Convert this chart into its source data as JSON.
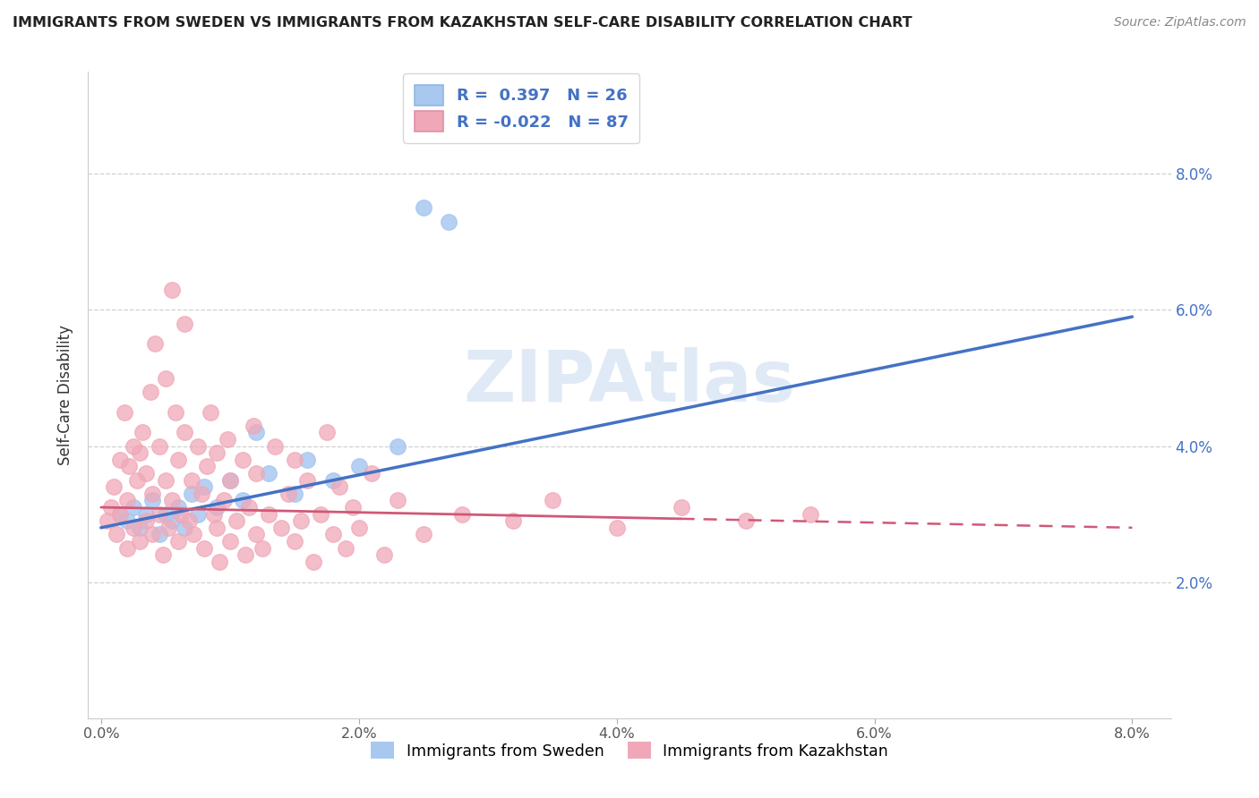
{
  "title": "IMMIGRANTS FROM SWEDEN VS IMMIGRANTS FROM KAZAKHSTAN SELF-CARE DISABILITY CORRELATION CHART",
  "source": "Source: ZipAtlas.com",
  "ylabel": "Self-Care Disability",
  "sweden_color": "#a8c8f0",
  "kazakhstan_color": "#f0a8b8",
  "sweden_line_color": "#4472c4",
  "kazakhstan_line_color": "#d05878",
  "watermark": "ZIPAtlas",
  "legend_r_sweden": "R =  0.397",
  "legend_n_sweden": "N = 26",
  "legend_r_kazakhstan": "R = -0.022",
  "legend_n_kazakhstan": "N = 87",
  "xlim": [
    0.0,
    8.0
  ],
  "ylim": [
    0.0,
    9.5
  ],
  "yticks": [
    2.0,
    4.0,
    6.0,
    8.0
  ],
  "xticks": [
    0.0,
    2.0,
    4.0,
    6.0,
    8.0
  ],
  "sweden_points": [
    [
      0.15,
      3.0
    ],
    [
      0.2,
      2.9
    ],
    [
      0.25,
      3.1
    ],
    [
      0.3,
      2.8
    ],
    [
      0.35,
      3.0
    ],
    [
      0.4,
      3.2
    ],
    [
      0.45,
      2.7
    ],
    [
      0.5,
      3.0
    ],
    [
      0.55,
      2.9
    ],
    [
      0.6,
      3.1
    ],
    [
      0.65,
      2.8
    ],
    [
      0.7,
      3.3
    ],
    [
      0.75,
      3.0
    ],
    [
      0.8,
      3.4
    ],
    [
      0.9,
      3.1
    ],
    [
      1.0,
      3.5
    ],
    [
      1.1,
      3.2
    ],
    [
      1.2,
      4.2
    ],
    [
      1.3,
      3.6
    ],
    [
      1.5,
      3.3
    ],
    [
      1.6,
      3.8
    ],
    [
      1.8,
      3.5
    ],
    [
      2.0,
      3.7
    ],
    [
      2.3,
      4.0
    ],
    [
      2.5,
      7.5
    ],
    [
      2.7,
      7.3
    ]
  ],
  "kazakhstan_points": [
    [
      0.05,
      2.9
    ],
    [
      0.08,
      3.1
    ],
    [
      0.1,
      3.4
    ],
    [
      0.12,
      2.7
    ],
    [
      0.15,
      3.0
    ],
    [
      0.15,
      3.8
    ],
    [
      0.18,
      4.5
    ],
    [
      0.2,
      2.5
    ],
    [
      0.2,
      3.2
    ],
    [
      0.22,
      3.7
    ],
    [
      0.25,
      2.8
    ],
    [
      0.25,
      4.0
    ],
    [
      0.28,
      3.5
    ],
    [
      0.3,
      2.6
    ],
    [
      0.3,
      3.9
    ],
    [
      0.32,
      4.2
    ],
    [
      0.35,
      2.9
    ],
    [
      0.35,
      3.6
    ],
    [
      0.38,
      4.8
    ],
    [
      0.4,
      2.7
    ],
    [
      0.4,
      3.3
    ],
    [
      0.42,
      5.5
    ],
    [
      0.45,
      3.0
    ],
    [
      0.45,
      4.0
    ],
    [
      0.48,
      2.4
    ],
    [
      0.5,
      3.5
    ],
    [
      0.5,
      5.0
    ],
    [
      0.52,
      2.8
    ],
    [
      0.55,
      3.2
    ],
    [
      0.55,
      6.3
    ],
    [
      0.58,
      4.5
    ],
    [
      0.6,
      2.6
    ],
    [
      0.6,
      3.8
    ],
    [
      0.62,
      3.0
    ],
    [
      0.65,
      4.2
    ],
    [
      0.65,
      5.8
    ],
    [
      0.68,
      2.9
    ],
    [
      0.7,
      3.5
    ],
    [
      0.72,
      2.7
    ],
    [
      0.75,
      4.0
    ],
    [
      0.78,
      3.3
    ],
    [
      0.8,
      2.5
    ],
    [
      0.82,
      3.7
    ],
    [
      0.85,
      4.5
    ],
    [
      0.88,
      3.0
    ],
    [
      0.9,
      2.8
    ],
    [
      0.9,
      3.9
    ],
    [
      0.92,
      2.3
    ],
    [
      0.95,
      3.2
    ],
    [
      0.98,
      4.1
    ],
    [
      1.0,
      2.6
    ],
    [
      1.0,
      3.5
    ],
    [
      1.05,
      2.9
    ],
    [
      1.1,
      3.8
    ],
    [
      1.12,
      2.4
    ],
    [
      1.15,
      3.1
    ],
    [
      1.18,
      4.3
    ],
    [
      1.2,
      2.7
    ],
    [
      1.2,
      3.6
    ],
    [
      1.25,
      2.5
    ],
    [
      1.3,
      3.0
    ],
    [
      1.35,
      4.0
    ],
    [
      1.4,
      2.8
    ],
    [
      1.45,
      3.3
    ],
    [
      1.5,
      2.6
    ],
    [
      1.5,
      3.8
    ],
    [
      1.55,
      2.9
    ],
    [
      1.6,
      3.5
    ],
    [
      1.65,
      2.3
    ],
    [
      1.7,
      3.0
    ],
    [
      1.75,
      4.2
    ],
    [
      1.8,
      2.7
    ],
    [
      1.85,
      3.4
    ],
    [
      1.9,
      2.5
    ],
    [
      1.95,
      3.1
    ],
    [
      2.0,
      2.8
    ],
    [
      2.1,
      3.6
    ],
    [
      2.2,
      2.4
    ],
    [
      2.3,
      3.2
    ],
    [
      2.5,
      2.7
    ],
    [
      2.8,
      3.0
    ],
    [
      3.2,
      2.9
    ],
    [
      3.5,
      3.2
    ],
    [
      4.0,
      2.8
    ],
    [
      4.5,
      3.1
    ],
    [
      5.0,
      2.9
    ],
    [
      5.5,
      3.0
    ]
  ],
  "sweden_trendline": [
    0.0,
    8.0,
    2.8,
    5.9
  ],
  "kazakhstan_solid_end": 4.5,
  "kazakhstan_trendline": [
    0.0,
    8.0,
    3.1,
    2.8
  ]
}
